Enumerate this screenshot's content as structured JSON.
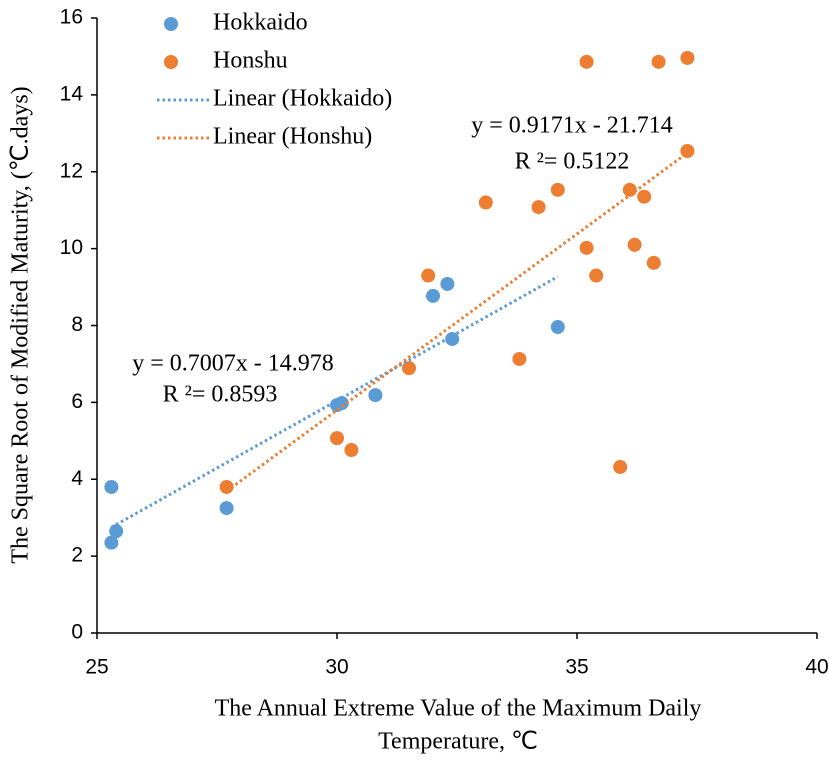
{
  "chart_data": {
    "type": "scatter",
    "xlabel": [
      "The Annual Extreme Value of the Maximum Daily",
      "Temperature, ℃"
    ],
    "ylabel": "The Square Root of Modified Maturity, (℃.days)",
    "xlim": [
      25,
      40
    ],
    "xticks": [
      25,
      30,
      35,
      40
    ],
    "ylim": [
      0,
      16
    ],
    "yticks": [
      0,
      2,
      4,
      6,
      8,
      10,
      12,
      14,
      16
    ],
    "grid": false,
    "legend": "top-left",
    "series": [
      {
        "name": "Hokkaido",
        "type": "scatter",
        "color": "#5b9bd5",
        "x": [
          25.3,
          25.4,
          25.3,
          27.7,
          30.0,
          30.1,
          30.8,
          32.0,
          32.3,
          32.4,
          34.6
        ],
        "values": [
          3.8,
          2.65,
          2.35,
          3.25,
          5.93,
          5.98,
          6.19,
          8.77,
          9.08,
          7.65,
          7.96
        ]
      },
      {
        "name": "Honshu",
        "type": "scatter",
        "color": "#ed7d31",
        "x": [
          27.7,
          30.0,
          30.3,
          31.5,
          31.9,
          33.1,
          33.8,
          34.2,
          34.6,
          35.2,
          35.2,
          35.4,
          35.9,
          36.1,
          36.2,
          36.4,
          36.6,
          36.7,
          37.3,
          37.3
        ],
        "values": [
          3.8,
          5.07,
          4.76,
          6.89,
          9.3,
          11.2,
          7.13,
          11.08,
          11.53,
          14.86,
          10.02,
          9.3,
          4.32,
          11.53,
          10.1,
          11.35,
          9.63,
          14.86,
          14.96,
          12.54
        ]
      },
      {
        "name": "Linear (Hokkaido)",
        "type": "line",
        "color": "#5b9bd5",
        "x": [
          25.3,
          34.6
        ],
        "values": [
          2.75,
          9.27
        ]
      },
      {
        "name": "Linear (Honshu)",
        "type": "line",
        "color": "#ed7d31",
        "x": [
          27.7,
          37.3
        ],
        "values": [
          3.69,
          12.49
        ]
      }
    ],
    "annotations": [
      "y = 0.9171x - 21.714",
      "R ²= 0.5122",
      "y = 0.7007x - 14.978",
      "R ²= 0.8593"
    ]
  }
}
